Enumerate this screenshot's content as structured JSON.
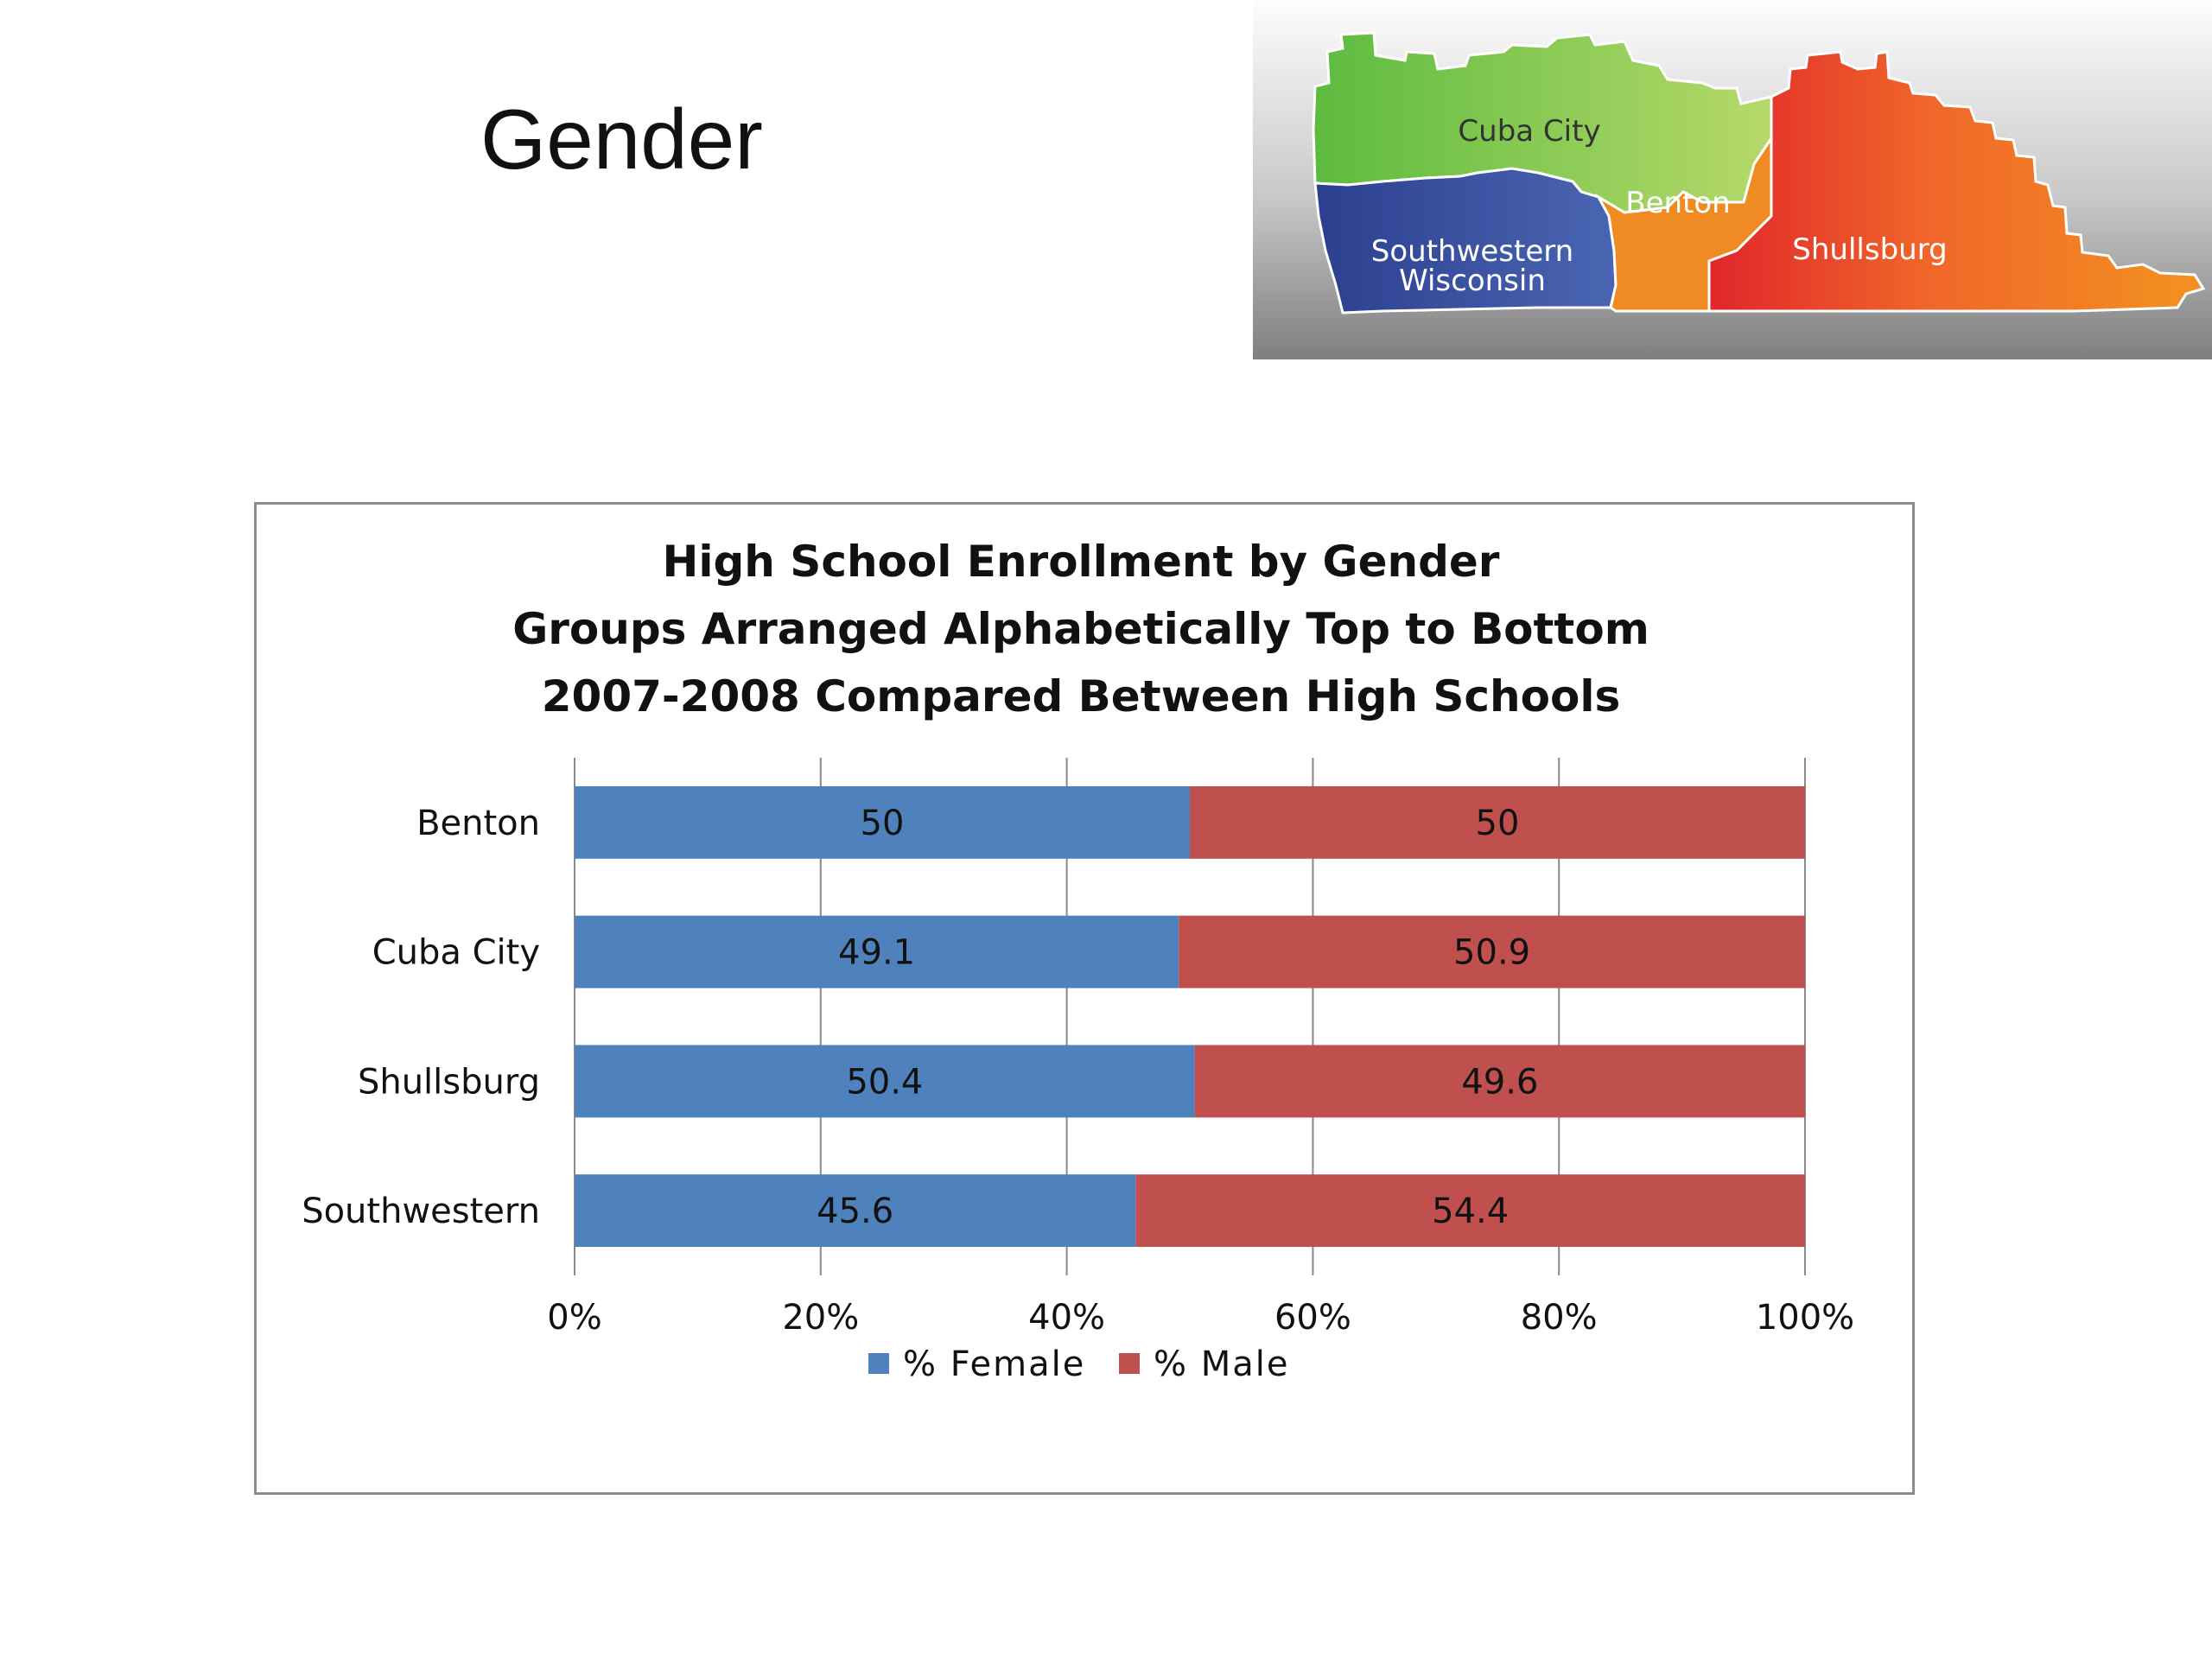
{
  "slide": {
    "title": "Gender"
  },
  "map": {
    "regions": [
      {
        "label": "Cuba City",
        "color": "#7cc142"
      },
      {
        "label": "Benton",
        "color": "#f2891f"
      },
      {
        "label": "Southwestern",
        "label2": "Wisconsin",
        "color": "#3b55a2"
      },
      {
        "label": "Shullsburg",
        "color": "#e8452a"
      }
    ]
  },
  "chart_data": {
    "type": "bar",
    "orientation": "horizontal",
    "stacked": "percent",
    "title_lines": [
      "High School Enrollment by Gender",
      "Groups Arranged Alphabetically Top to Bottom",
      "2007-2008 Compared Between High Schools"
    ],
    "categories": [
      "Benton",
      "Cuba City",
      "Shullsburg",
      "Southwestern"
    ],
    "series": [
      {
        "name": "% Female",
        "color": "#4f81bd",
        "values": [
          50,
          49.1,
          50.4,
          45.6
        ]
      },
      {
        "name": "% Male",
        "color": "#c0504d",
        "values": [
          50,
          50.9,
          49.6,
          54.4
        ]
      }
    ],
    "x_ticks": [
      "0%",
      "20%",
      "40%",
      "60%",
      "80%",
      "100%"
    ],
    "xlim": [
      0,
      100
    ],
    "grid": true,
    "legend": "bottom"
  }
}
